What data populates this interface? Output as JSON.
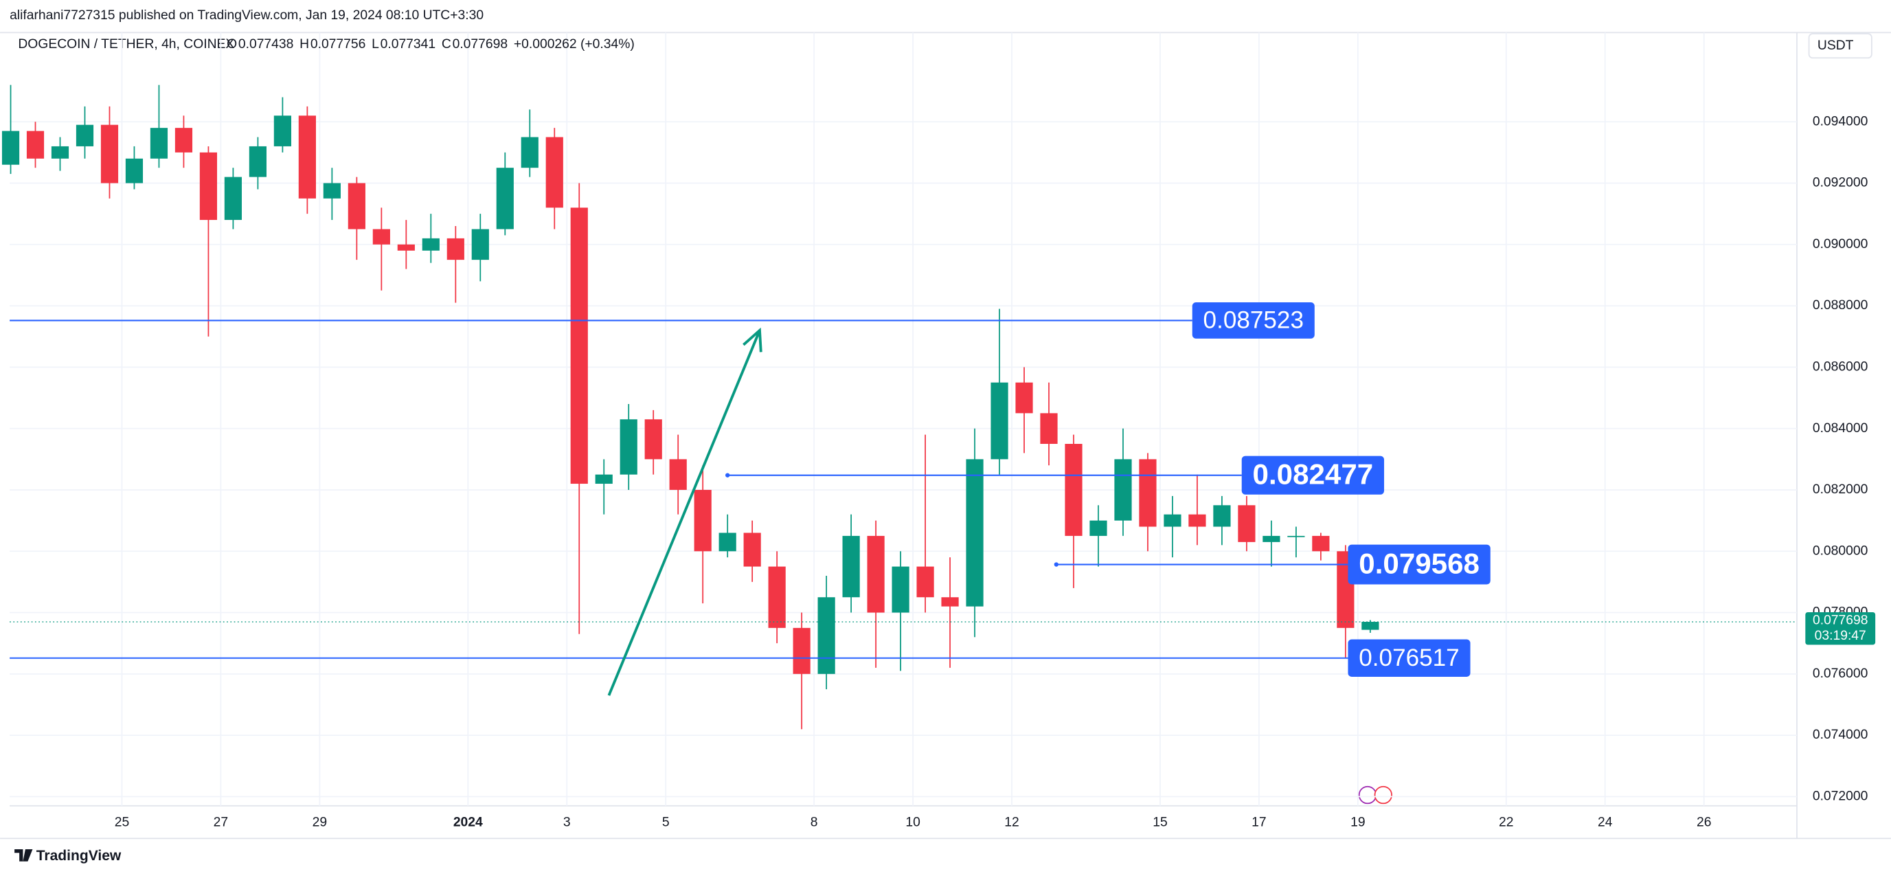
{
  "header": {
    "publisher": "alifarhani7727315 published on TradingView.com, Jan 19, 2024 08:10 UTC+3:30",
    "symbol": "DOGECOIN / TETHER, 4h, COINEX",
    "change": "+0.000262 (+0.34%)",
    "currency": "USDT",
    "ohlc_labels": [
      "O",
      "H",
      "L",
      "C"
    ]
  },
  "footer": {
    "brand": "TradingView"
  },
  "chart_data": {
    "type": "candlestick",
    "up_color": "#089981",
    "down_color": "#f23645",
    "grid": true,
    "x": [
      22.75,
      23.25,
      23.75,
      24.25,
      24.75,
      25.25,
      25.75,
      26.25,
      26.75,
      27.25,
      27.75,
      28.25,
      28.75,
      29.25,
      29.75,
      30.25,
      30.75,
      31.25,
      31.75,
      32.25,
      32.75,
      33.25,
      33.75,
      34.25,
      34.75,
      35.25,
      35.75,
      36.25,
      36.75,
      37.25,
      37.75,
      38.25,
      38.75,
      39.25,
      39.75,
      40.25,
      40.75,
      41.25,
      41.75,
      42.25,
      42.75,
      43.25,
      43.75,
      44.25,
      44.75,
      45.25,
      45.75,
      46.25,
      46.75,
      47.25,
      47.75,
      48.25,
      48.75,
      49.25,
      49.75,
      50.25
    ],
    "open": [
      0.0926,
      0.0937,
      0.0928,
      0.0932,
      0.0939,
      0.092,
      0.0928,
      0.0938,
      0.093,
      0.0908,
      0.0922,
      0.0932,
      0.0942,
      0.0915,
      0.092,
      0.0905,
      0.09,
      0.0898,
      0.0902,
      0.0895,
      0.0905,
      0.0925,
      0.0935,
      0.0912,
      0.0822,
      0.0825,
      0.0843,
      0.083,
      0.082,
      0.08,
      0.0806,
      0.0795,
      0.0775,
      0.076,
      0.0785,
      0.0805,
      0.078,
      0.0795,
      0.0785,
      0.0782,
      0.083,
      0.0855,
      0.0845,
      0.0835,
      0.0805,
      0.081,
      0.083,
      0.0808,
      0.0812,
      0.0808,
      0.0815,
      0.0803,
      0.0805,
      0.0805,
      0.08,
      0.077438
    ],
    "high": [
      0.0952,
      0.094,
      0.0935,
      0.0945,
      0.0945,
      0.0932,
      0.0952,
      0.0942,
      0.0932,
      0.0925,
      0.0935,
      0.0948,
      0.0945,
      0.0925,
      0.0922,
      0.0912,
      0.0908,
      0.091,
      0.0906,
      0.091,
      0.093,
      0.0944,
      0.0938,
      0.092,
      0.083,
      0.0848,
      0.0846,
      0.0838,
      0.0828,
      0.0812,
      0.081,
      0.08,
      0.078,
      0.0792,
      0.0812,
      0.081,
      0.08,
      0.0838,
      0.0798,
      0.084,
      0.0879,
      0.086,
      0.0855,
      0.0838,
      0.0815,
      0.084,
      0.0832,
      0.0818,
      0.0825,
      0.0818,
      0.0818,
      0.081,
      0.0808,
      0.0806,
      0.0802,
      0.077756
    ],
    "low": [
      0.0923,
      0.0925,
      0.0924,
      0.0928,
      0.0915,
      0.0918,
      0.0925,
      0.0925,
      0.087,
      0.0905,
      0.0918,
      0.093,
      0.091,
      0.0908,
      0.0895,
      0.0885,
      0.0892,
      0.0894,
      0.0881,
      0.0888,
      0.0903,
      0.0922,
      0.0905,
      0.0773,
      0.0812,
      0.082,
      0.0825,
      0.0812,
      0.0783,
      0.0798,
      0.079,
      0.077,
      0.0742,
      0.0755,
      0.078,
      0.0762,
      0.0761,
      0.078,
      0.0762,
      0.0772,
      0.0825,
      0.0832,
      0.0828,
      0.0788,
      0.0795,
      0.0805,
      0.08,
      0.0798,
      0.0802,
      0.0802,
      0.08,
      0.0795,
      0.0798,
      0.0797,
      0.0765,
      0.077341
    ],
    "close": [
      0.0937,
      0.0928,
      0.0932,
      0.0939,
      0.092,
      0.0928,
      0.0938,
      0.093,
      0.0908,
      0.0922,
      0.0932,
      0.0942,
      0.0915,
      0.092,
      0.0905,
      0.09,
      0.0898,
      0.0902,
      0.0895,
      0.0905,
      0.0925,
      0.0935,
      0.0912,
      0.0822,
      0.0825,
      0.0843,
      0.083,
      0.082,
      0.08,
      0.0806,
      0.0795,
      0.0775,
      0.076,
      0.0785,
      0.0805,
      0.078,
      0.0795,
      0.0785,
      0.0782,
      0.083,
      0.0855,
      0.0845,
      0.0835,
      0.0805,
      0.081,
      0.083,
      0.0808,
      0.0812,
      0.0808,
      0.0815,
      0.0803,
      0.0805,
      0.0805,
      0.08,
      0.0775,
      0.077698
    ],
    "xlim": [
      22.73,
      58.88
    ],
    "ylim": [
      0.0717,
      0.0962
    ],
    "xticks": [
      {
        "value": 25,
        "label": "25"
      },
      {
        "value": 27,
        "label": "27"
      },
      {
        "value": 29,
        "label": "29"
      },
      {
        "value": 32,
        "label": "2024"
      },
      {
        "value": 34,
        "label": "3"
      },
      {
        "value": 36,
        "label": "5"
      },
      {
        "value": 39,
        "label": "8"
      },
      {
        "value": 41,
        "label": "10"
      },
      {
        "value": 43,
        "label": "12"
      },
      {
        "value": 46,
        "label": "15"
      },
      {
        "value": 48,
        "label": "17"
      },
      {
        "value": 50,
        "label": "19"
      },
      {
        "value": 53,
        "label": "22"
      },
      {
        "value": 55,
        "label": "24"
      },
      {
        "value": 57,
        "label": "26"
      }
    ],
    "yticks": [
      {
        "value": 0.072,
        "label": "0.072000"
      },
      {
        "value": 0.074,
        "label": "0.074000"
      },
      {
        "value": 0.076,
        "label": "0.076000"
      },
      {
        "value": 0.078,
        "label": "0.078000"
      },
      {
        "value": 0.08,
        "label": "0.080000"
      },
      {
        "value": 0.082,
        "label": "0.082000"
      },
      {
        "value": 0.084,
        "label": "0.084000"
      },
      {
        "value": 0.086,
        "label": "0.086000"
      },
      {
        "value": 0.088,
        "label": "0.088000"
      },
      {
        "value": 0.09,
        "label": "0.090000"
      },
      {
        "value": 0.092,
        "label": "0.092000"
      },
      {
        "value": 0.094,
        "label": "0.094000"
      }
    ],
    "last_price": 0.077698,
    "countdown": "03:19:47",
    "levels": [
      {
        "value": 0.087523,
        "start": 22.73,
        "end": 46.65
      },
      {
        "value": 0.082477,
        "start": 37.25,
        "end": 47.65
      },
      {
        "value": 0.079568,
        "start": 43.9,
        "end": 49.8
      },
      {
        "value": 0.076517,
        "start": 22.73,
        "end": 49.8
      }
    ],
    "arrow": {
      "x": [
        34.85,
        37.9
      ],
      "y": [
        0.0753,
        0.0872
      ],
      "color": "#089981"
    },
    "level_color": "#2962ff"
  }
}
